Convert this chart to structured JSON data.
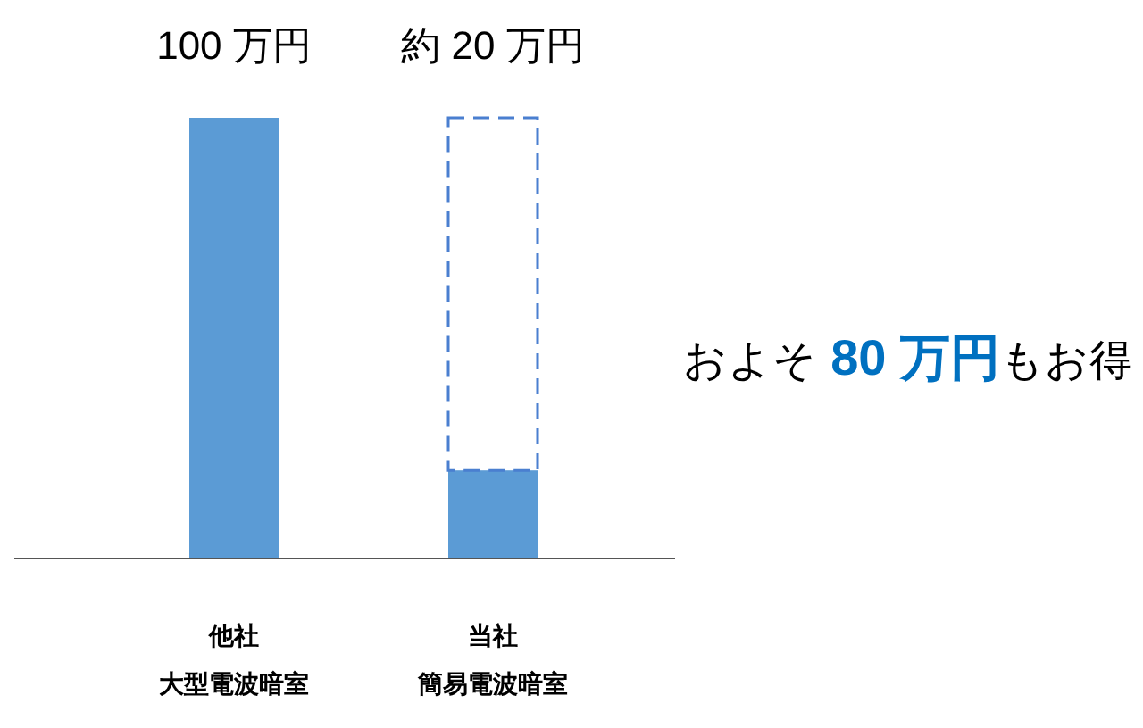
{
  "chart_data": {
    "type": "bar",
    "stacked": true,
    "categories": [
      "他社大型電波暗室",
      "当社簡易電波暗室"
    ],
    "series": [
      {
        "color": "#5b9bd5",
        "values": [
          100,
          20
        ],
        "value_labels": [
          "100 万円",
          "約 20 万円"
        ]
      },
      {
        "color": "#4a7fd0",
        "values": [
          null,
          80
        ],
        "line_style": "dashed"
      }
    ],
    "annotations": [
      "およそ",
      "80 万円",
      "もお得"
    ]
  }
}
